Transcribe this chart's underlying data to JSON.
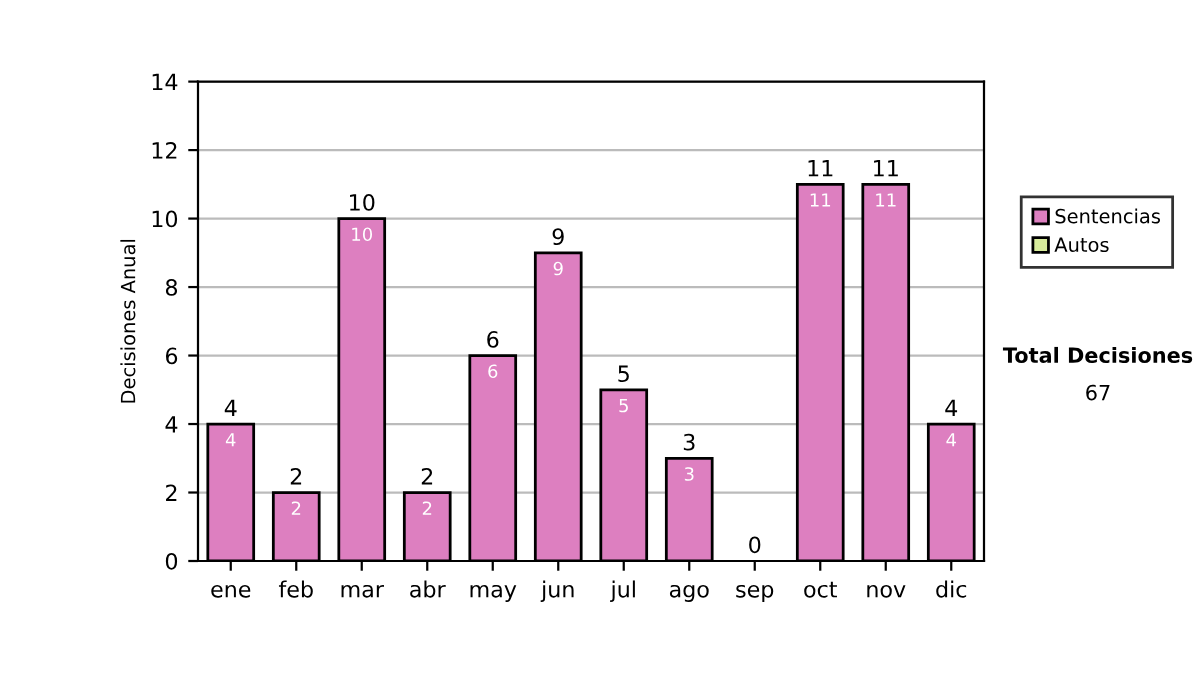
{
  "chart_data": {
    "type": "bar",
    "stacked": true,
    "ylabel": "Decisiones Anual",
    "categories": [
      "ene",
      "feb",
      "mar",
      "abr",
      "may",
      "jun",
      "jul",
      "ago",
      "sep",
      "oct",
      "nov",
      "dic"
    ],
    "series": [
      {
        "name": "Sentencias",
        "color": "#dd7fc0",
        "values": [
          4,
          2,
          10,
          2,
          6,
          9,
          5,
          3,
          0,
          11,
          11,
          4
        ],
        "value_labels": [
          "4",
          "2",
          "10",
          "2",
          "6",
          "9",
          "5",
          "3",
          null,
          "11",
          "11",
          "4"
        ]
      },
      {
        "name": "Autos",
        "color": "#d8ec9c",
        "values": [
          0,
          0,
          0,
          0,
          0,
          0,
          0,
          0,
          0,
          0,
          0,
          0
        ]
      }
    ],
    "totals": [
      "4",
      "2",
      "10",
      "2",
      "6",
      "9",
      "5",
      "3",
      "0",
      "11",
      "11",
      "4"
    ],
    "ylim": [
      0,
      14
    ],
    "yticks": [
      0,
      2,
      4,
      6,
      8,
      10,
      12,
      14
    ],
    "grid": "y",
    "legend": "right",
    "annotations": [
      "Total Decisiones",
      "67"
    ]
  }
}
